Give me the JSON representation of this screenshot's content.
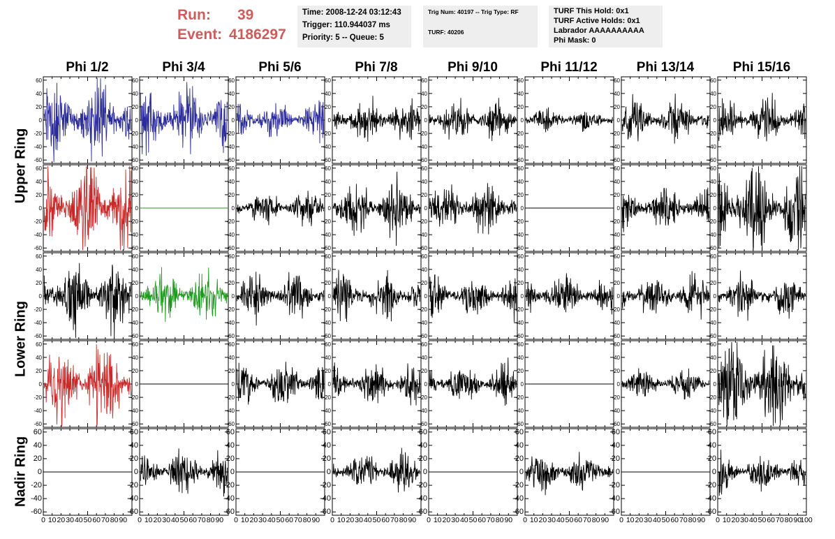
{
  "header": {
    "run_label": "Run:",
    "run_value": "39",
    "event_label": "Event:",
    "event_value": "4186297",
    "time": "Time: 2008-12-24 03:12:43",
    "trigger": "Trigger: 110.944037 ms",
    "priority": "Priority: 5 -- Queue: 5",
    "trig_num": "Trig Num: 40197 -- Trig Type: RF",
    "turf": "TURF: 40206",
    "turf_this_hold": "TURF This Hold: 0x1",
    "turf_active_holds": "TURF Active Holds: 0x1",
    "labrador": "Labrador AAAAAAAAAA",
    "phi_mask": "Phi Mask: 0"
  },
  "columns": [
    "Phi 1/2",
    "Phi 3/4",
    "Phi 5/6",
    "Phi 7/8",
    "Phi 9/10",
    "Phi 11/12",
    "Phi 13/14",
    "Phi 15/16"
  ],
  "rings": [
    "Upper Ring",
    "Lower Ring",
    "Nadir Ring"
  ],
  "colors": {
    "blue": "#2b2b9a",
    "red": "#c82828",
    "green": "#1e9a1e",
    "black": "#000000",
    "run_text": "#cd5c5c",
    "info_box": "#eeeeee"
  },
  "chart_data": {
    "type": "line",
    "grid": false,
    "xlim": [
      0,
      100
    ],
    "ylim": [
      -65,
      65
    ],
    "y_ticks": [
      -60,
      -40,
      -20,
      0,
      20,
      40,
      60
    ],
    "x_ticks": [
      0,
      10,
      20,
      30,
      40,
      50,
      60,
      70,
      80,
      90,
      100
    ],
    "x_tick_labels": [
      "0",
      "10",
      "20",
      "30",
      "40",
      "50",
      "60",
      "70",
      "80",
      "90",
      "100"
    ],
    "samples_per_trace": 260,
    "trace_x_range": [
      1,
      99
    ],
    "traces": [
      {
        "row": 0,
        "col": 0,
        "color": "blue",
        "amplitude": 25,
        "flat": false
      },
      {
        "row": 0,
        "col": 1,
        "color": "blue",
        "amplitude": 22,
        "flat": false
      },
      {
        "row": 0,
        "col": 2,
        "color": "blue",
        "amplitude": 12,
        "flat": false
      },
      {
        "row": 0,
        "col": 3,
        "color": "black",
        "amplitude": 13,
        "flat": false
      },
      {
        "row": 0,
        "col": 4,
        "color": "black",
        "amplitude": 12,
        "flat": false
      },
      {
        "row": 0,
        "col": 5,
        "color": "black",
        "amplitude": 7,
        "flat": false
      },
      {
        "row": 0,
        "col": 6,
        "color": "black",
        "amplitude": 13,
        "flat": false
      },
      {
        "row": 0,
        "col": 7,
        "color": "black",
        "amplitude": 14,
        "flat": false
      },
      {
        "row": 1,
        "col": 0,
        "color": "red",
        "amplitude": 28,
        "flat": false
      },
      {
        "row": 1,
        "col": 1,
        "color": "green",
        "amplitude": 0,
        "flat": true
      },
      {
        "row": 1,
        "col": 2,
        "color": "black",
        "amplitude": 11,
        "flat": false
      },
      {
        "row": 1,
        "col": 3,
        "color": "black",
        "amplitude": 18,
        "flat": false
      },
      {
        "row": 1,
        "col": 4,
        "color": "black",
        "amplitude": 15,
        "flat": false
      },
      {
        "row": 1,
        "col": 5,
        "color": "black",
        "amplitude": 0,
        "flat": true
      },
      {
        "row": 1,
        "col": 6,
        "color": "black",
        "amplitude": 12,
        "flat": false
      },
      {
        "row": 1,
        "col": 7,
        "color": "black",
        "amplitude": 28,
        "flat": false
      },
      {
        "row": 2,
        "col": 0,
        "color": "black",
        "amplitude": 22,
        "flat": false
      },
      {
        "row": 2,
        "col": 1,
        "color": "green",
        "amplitude": 17,
        "flat": false
      },
      {
        "row": 2,
        "col": 2,
        "color": "black",
        "amplitude": 14,
        "flat": false
      },
      {
        "row": 2,
        "col": 3,
        "color": "black",
        "amplitude": 13,
        "flat": false
      },
      {
        "row": 2,
        "col": 4,
        "color": "black",
        "amplitude": 12,
        "flat": false
      },
      {
        "row": 2,
        "col": 5,
        "color": "black",
        "amplitude": 12,
        "flat": false
      },
      {
        "row": 2,
        "col": 6,
        "color": "black",
        "amplitude": 13,
        "flat": false
      },
      {
        "row": 2,
        "col": 7,
        "color": "black",
        "amplitude": 13,
        "flat": false
      },
      {
        "row": 3,
        "col": 0,
        "color": "red",
        "amplitude": 28,
        "flat": false
      },
      {
        "row": 3,
        "col": 1,
        "color": "black",
        "amplitude": 0,
        "flat": true
      },
      {
        "row": 3,
        "col": 2,
        "color": "black",
        "amplitude": 14,
        "flat": false
      },
      {
        "row": 3,
        "col": 3,
        "color": "black",
        "amplitude": 13,
        "flat": false
      },
      {
        "row": 3,
        "col": 4,
        "color": "black",
        "amplitude": 12,
        "flat": false
      },
      {
        "row": 3,
        "col": 5,
        "color": "black",
        "amplitude": 0,
        "flat": true
      },
      {
        "row": 3,
        "col": 6,
        "color": "black",
        "amplitude": 9,
        "flat": false
      },
      {
        "row": 3,
        "col": 7,
        "color": "black",
        "amplitude": 28,
        "flat": false
      },
      {
        "row": 4,
        "col": 0,
        "color": "black",
        "amplitude": 0,
        "flat": true
      },
      {
        "row": 4,
        "col": 1,
        "color": "black",
        "amplitude": 14,
        "flat": false
      },
      {
        "row": 4,
        "col": 2,
        "color": "black",
        "amplitude": 0,
        "flat": true
      },
      {
        "row": 4,
        "col": 3,
        "color": "black",
        "amplitude": 12,
        "flat": false
      },
      {
        "row": 4,
        "col": 4,
        "color": "black",
        "amplitude": 0,
        "flat": true
      },
      {
        "row": 4,
        "col": 5,
        "color": "black",
        "amplitude": 12,
        "flat": false
      },
      {
        "row": 4,
        "col": 6,
        "color": "black",
        "amplitude": 0,
        "flat": true
      },
      {
        "row": 4,
        "col": 7,
        "color": "black",
        "amplitude": 12,
        "flat": false
      }
    ]
  }
}
